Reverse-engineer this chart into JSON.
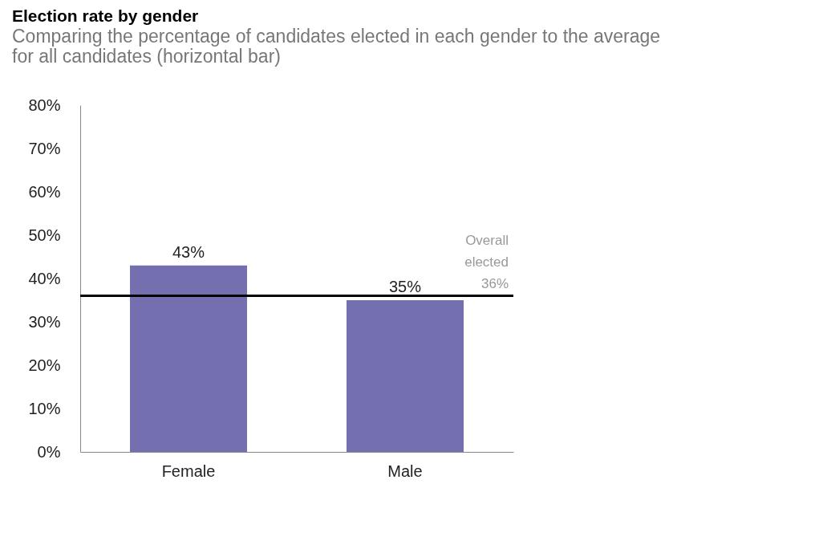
{
  "chart_data": {
    "type": "bar",
    "title": "Election rate by gender",
    "subtitle": "Comparing the percentage of candidates elected in each gender to the average for all candidates (horizontal bar)",
    "categories": [
      "Female",
      "Male"
    ],
    "values": [
      43,
      35
    ],
    "color": "#7470b0",
    "value_labels": [
      "43%",
      "35%"
    ],
    "ylim": [
      0,
      80
    ],
    "yticks": [
      {
        "value": 0,
        "label": "0%"
      },
      {
        "value": 10,
        "label": "10%"
      },
      {
        "value": 20,
        "label": "20%"
      },
      {
        "value": 30,
        "label": "30%"
      },
      {
        "value": 40,
        "label": "40%"
      },
      {
        "value": 50,
        "label": "50%"
      },
      {
        "value": 60,
        "label": "60%"
      },
      {
        "value": 70,
        "label": "70%"
      },
      {
        "value": 80,
        "label": "80%"
      }
    ],
    "ref_lines": [
      {
        "axis": "y",
        "value": 36,
        "label": "Overall elected 36%",
        "color": "#000000"
      }
    ],
    "grid": false
  }
}
